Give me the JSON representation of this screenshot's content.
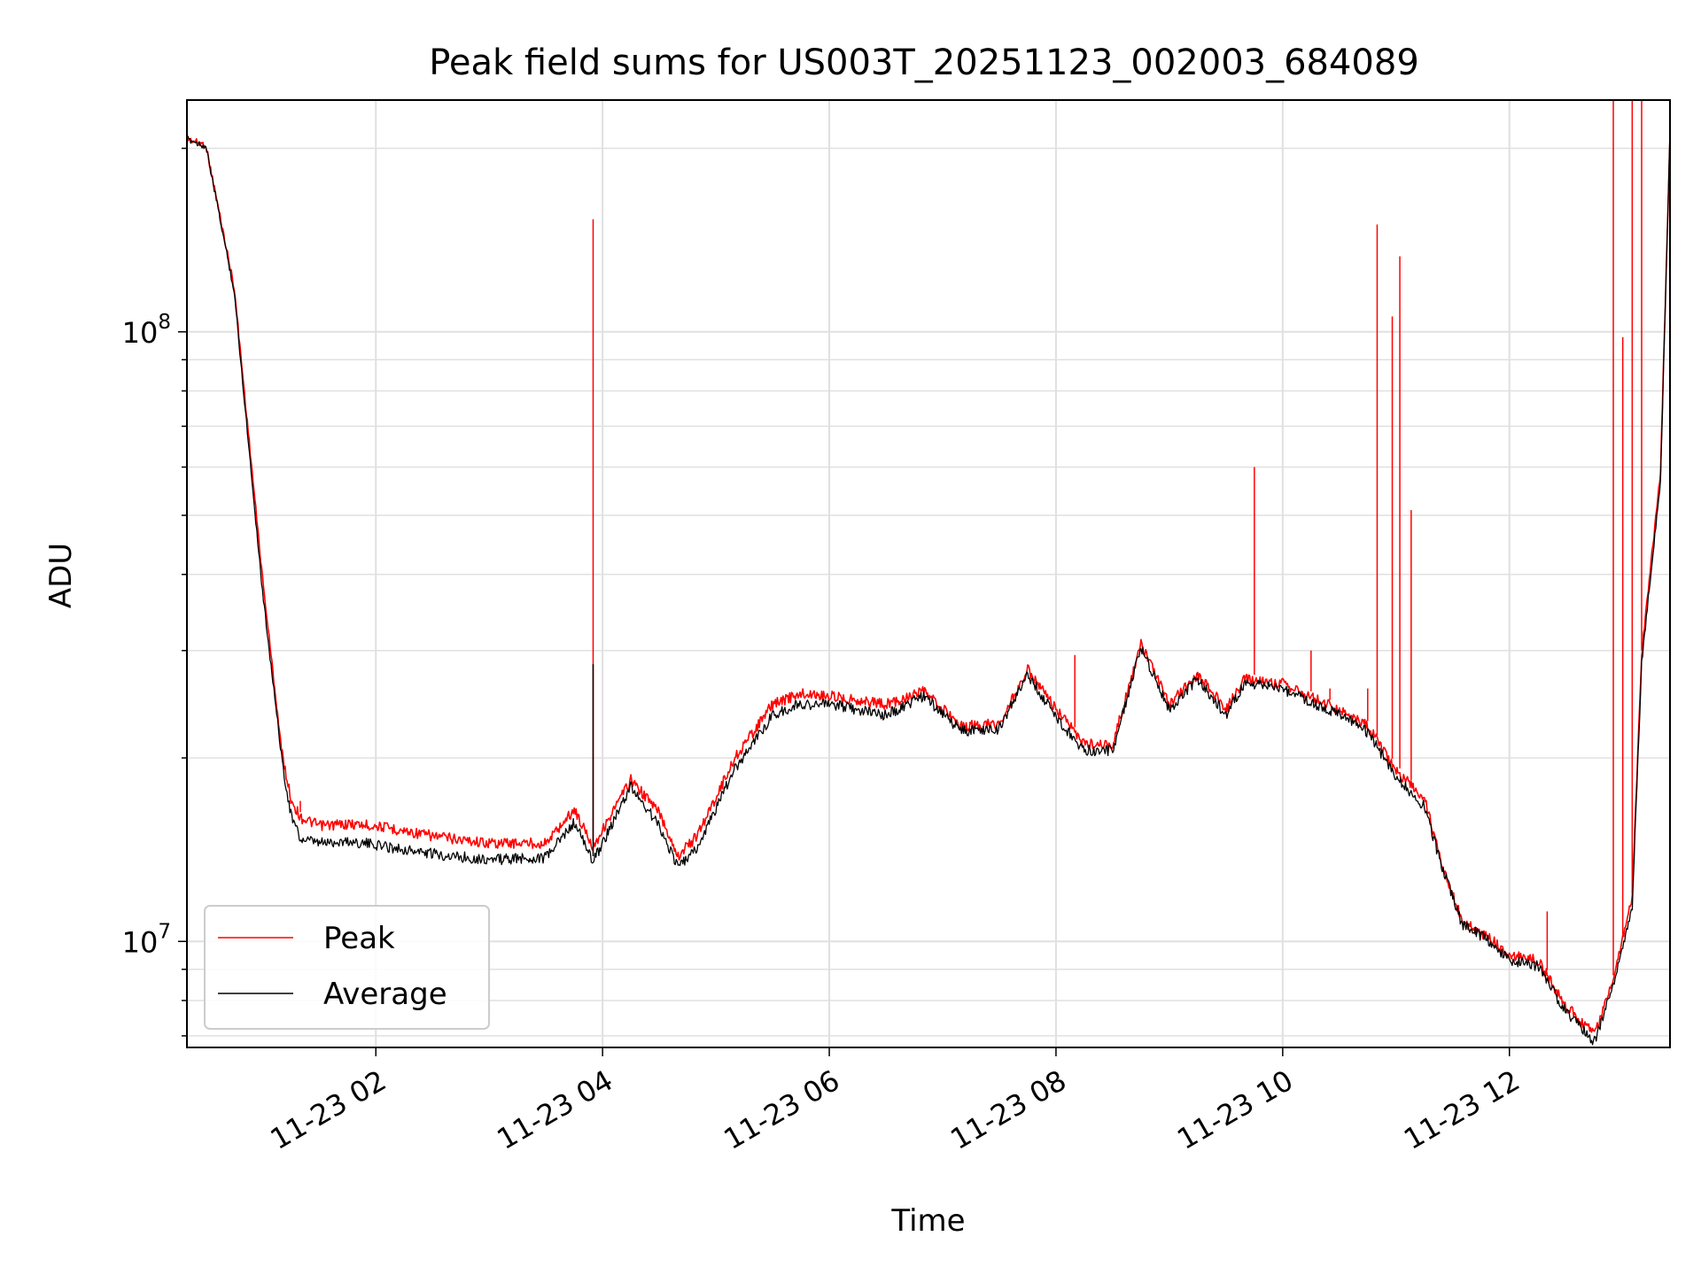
{
  "chart_data": {
    "type": "line",
    "title": "Peak field sums for US003T_20251123_002003_684089",
    "xlabel": "Time",
    "ylabel": "ADU",
    "yscale": "log",
    "xlim": [
      "2025-11-23 00:20",
      "2025-11-23 13:25"
    ],
    "ylim": [
      6700000,
      240000000
    ],
    "x_tick_labels": [
      "11-23 02",
      "11-23 04",
      "11-23 06",
      "11-23 08",
      "11-23 10",
      "11-23 12"
    ],
    "y_tick_labels": [
      {
        "base": "10",
        "exp": "7"
      },
      {
        "base": "10",
        "exp": "8"
      }
    ],
    "grid": true,
    "legend_position": "lower-left",
    "series": [
      {
        "name": "Peak",
        "color": "#ff0000",
        "points": [
          [
            "00:20",
            210000000
          ],
          [
            "00:30",
            205000000
          ],
          [
            "00:45",
            120000000
          ],
          [
            "01:00",
            40000000
          ],
          [
            "01:10",
            21000000
          ],
          [
            "01:15",
            17500000
          ],
          [
            "01:20",
            16300000
          ],
          [
            "01:30",
            15800000
          ],
          [
            "01:45",
            15900000
          ],
          [
            "02:00",
            15800000
          ],
          [
            "02:30",
            15200000
          ],
          [
            "03:00",
            14800000
          ],
          [
            "03:30",
            14800000
          ],
          [
            "03:45",
            16800000
          ],
          [
            "03:55",
            14600000
          ],
          [
            "04:15",
            18800000
          ],
          [
            "04:30",
            16600000
          ],
          [
            "04:40",
            14100000
          ],
          [
            "04:50",
            15200000
          ],
          [
            "05:10",
            20400000
          ],
          [
            "05:30",
            25000000
          ],
          [
            "05:45",
            26000000
          ],
          [
            "06:00",
            25800000
          ],
          [
            "06:30",
            25000000
          ],
          [
            "06:50",
            26200000
          ],
          [
            "07:10",
            23000000
          ],
          [
            "07:30",
            23200000
          ],
          [
            "07:45",
            28500000
          ],
          [
            "08:00",
            24500000
          ],
          [
            "08:15",
            21500000
          ],
          [
            "08:30",
            21500000
          ],
          [
            "08:45",
            31300000
          ],
          [
            "09:00",
            25000000
          ],
          [
            "09:15",
            28000000
          ],
          [
            "09:30",
            24500000
          ],
          [
            "09:40",
            27500000
          ],
          [
            "10:00",
            27000000
          ],
          [
            "10:30",
            24500000
          ],
          [
            "10:45",
            23000000
          ],
          [
            "11:00",
            19500000
          ],
          [
            "11:15",
            17500000
          ],
          [
            "11:25",
            13500000
          ],
          [
            "11:35",
            11000000
          ],
          [
            "11:50",
            10300000
          ],
          [
            "12:00",
            9700000
          ],
          [
            "12:15",
            9500000
          ],
          [
            "12:30",
            8000000
          ],
          [
            "12:45",
            7200000
          ],
          [
            "12:55",
            8800000
          ],
          [
            "13:05",
            12000000
          ],
          [
            "13:10",
            30000000
          ],
          [
            "13:20",
            60000000
          ],
          [
            "13:25",
            210000000
          ]
        ],
        "spikes": [
          [
            "01:20",
            17000000
          ],
          [
            "03:55",
            153000000
          ],
          [
            "08:10",
            29500000
          ],
          [
            "09:45",
            60000000
          ],
          [
            "10:15",
            30000000
          ],
          [
            "10:25",
            26000000
          ],
          [
            "10:45",
            26000000
          ],
          [
            "10:50",
            150000000
          ],
          [
            "10:58",
            106000000
          ],
          [
            "11:02",
            133000000
          ],
          [
            "11:08",
            51000000
          ],
          [
            "12:20",
            11200000
          ],
          [
            "12:55",
            240000000
          ],
          [
            "13:00",
            98000000
          ],
          [
            "13:05",
            240000000
          ],
          [
            "13:10",
            240000000
          ]
        ]
      },
      {
        "name": "Average",
        "color": "#000000",
        "points": [
          [
            "00:20",
            210000000
          ],
          [
            "00:30",
            204000000
          ],
          [
            "00:45",
            118000000
          ],
          [
            "01:00",
            38000000
          ],
          [
            "01:10",
            20500000
          ],
          [
            "01:15",
            16500000
          ],
          [
            "01:20",
            15000000
          ],
          [
            "01:30",
            14800000
          ],
          [
            "01:45",
            14900000
          ],
          [
            "02:00",
            14700000
          ],
          [
            "02:30",
            14200000
          ],
          [
            "03:00",
            13900000
          ],
          [
            "03:30",
            14000000
          ],
          [
            "03:45",
            16000000
          ],
          [
            "03:55",
            13800000
          ],
          [
            "04:15",
            18300000
          ],
          [
            "04:30",
            15800000
          ],
          [
            "04:40",
            13500000
          ],
          [
            "04:50",
            14500000
          ],
          [
            "05:10",
            19600000
          ],
          [
            "05:30",
            24000000
          ],
          [
            "05:45",
            25000000
          ],
          [
            "06:00",
            25000000
          ],
          [
            "06:30",
            24000000
          ],
          [
            "06:50",
            25800000
          ],
          [
            "07:10",
            22600000
          ],
          [
            "07:30",
            22800000
          ],
          [
            "07:45",
            28000000
          ],
          [
            "08:00",
            23800000
          ],
          [
            "08:15",
            21000000
          ],
          [
            "08:30",
            21000000
          ],
          [
            "08:45",
            31000000
          ],
          [
            "09:00",
            24500000
          ],
          [
            "09:15",
            27500000
          ],
          [
            "09:30",
            24000000
          ],
          [
            "09:40",
            27000000
          ],
          [
            "10:00",
            26500000
          ],
          [
            "10:30",
            24000000
          ],
          [
            "10:45",
            22500000
          ],
          [
            "11:00",
            19000000
          ],
          [
            "11:15",
            17000000
          ],
          [
            "11:25",
            13300000
          ],
          [
            "11:35",
            10900000
          ],
          [
            "11:50",
            10200000
          ],
          [
            "12:00",
            9500000
          ],
          [
            "12:15",
            9300000
          ],
          [
            "12:30",
            7800000
          ],
          [
            "12:45",
            7000000
          ],
          [
            "12:55",
            8600000
          ],
          [
            "13:05",
            11500000
          ],
          [
            "13:10",
            29000000
          ],
          [
            "13:20",
            58000000
          ],
          [
            "13:25",
            215000000
          ]
        ],
        "spikes": [
          [
            "03:55",
            28500000
          ]
        ]
      }
    ]
  }
}
